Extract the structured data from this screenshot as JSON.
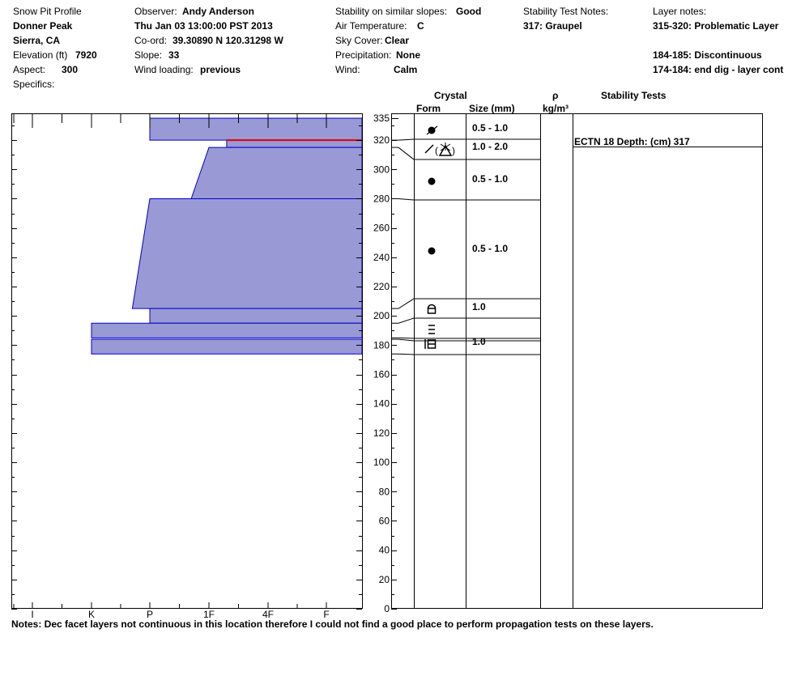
{
  "header": {
    "title": "Snow Pit Profile",
    "location": "Donner Peak",
    "region": "Sierra, CA",
    "elevation_label": "Elevation (ft)",
    "elevation_value": "7920",
    "aspect_label": "Aspect:",
    "aspect_value": "300",
    "specifics_label": "Specifics:",
    "observer_label": "Observer:",
    "observer_value": "Andy Anderson",
    "datetime": "Thu Jan 03 13:00:00 PST 2013",
    "coord_label": "Co-ord:",
    "coord_value": "39.30890 N 120.31298 W",
    "slope_label": "Slope:",
    "slope_value": "33",
    "wind_loading_label": "Wind loading:",
    "wind_loading_value": "previous",
    "stability_label": "Stability on similar slopes:",
    "stability_value": "Good",
    "air_temp_label": "Air Temperature:",
    "air_temp_value": "C",
    "sky_label": "Sky Cover:",
    "sky_value": "Clear",
    "precip_label": "Precipitation:",
    "precip_value": "None",
    "wind_label": "Wind:",
    "wind_value": "Calm",
    "stability_notes_label": "Stability Test Notes:",
    "stability_notes": [
      "317: Graupel"
    ],
    "layer_notes_label": "Layer notes:",
    "layer_notes": [
      "315-320: Problematic Layer",
      "",
      "184-185: Discontinuous",
      "174-184: end dig - layer cont"
    ]
  },
  "columns": {
    "crystal": "Crystal",
    "form": "Form",
    "size": "Size (mm)",
    "rho": "ρ",
    "density_unit": "kg/m³",
    "stability_tests": "Stability Tests"
  },
  "notes": "Notes:  Dec facet layers not continuous in this location therefore I could not find a good place to perform propagation tests on these layers.",
  "colors": {
    "layer_fill": "#9999d6",
    "layer_edge": "#0000cc",
    "problem_layer": "#e00000"
  },
  "chart_data": {
    "type": "bar",
    "orientation": "horizontal",
    "y_axis": {
      "label": "",
      "range": [
        0,
        335
      ],
      "ticks": [
        0,
        20,
        40,
        60,
        80,
        100,
        120,
        140,
        160,
        180,
        200,
        220,
        240,
        260,
        280,
        300,
        320,
        335
      ]
    },
    "hardness_scale": [
      "I",
      "K",
      "P",
      "1F",
      "4F",
      "F"
    ],
    "hardness_tick_values": [
      1,
      2,
      3,
      4,
      5,
      6
    ],
    "layers": [
      {
        "top": 335,
        "bottom": 320,
        "hardness_top": 3.0,
        "hardness_bottom": 3.0,
        "form": "round",
        "size": "0.5 - 1.0"
      },
      {
        "top": 320,
        "bottom": 315,
        "hardness_top": 4.3,
        "hardness_bottom": 4.3,
        "form": "graupel",
        "size": "1.0 - 2.0",
        "problem": true
      },
      {
        "top": 315,
        "bottom": 280,
        "hardness_top": 4.0,
        "hardness_bottom": 3.7,
        "form": "round",
        "size": "0.5 - 1.0"
      },
      {
        "top": 280,
        "bottom": 205,
        "hardness_top": 3.0,
        "hardness_bottom": 2.7,
        "form": "round",
        "size": "0.5 - 1.0"
      },
      {
        "top": 205,
        "bottom": 195,
        "hardness_top": 3.0,
        "hardness_bottom": 3.0,
        "form": "facet-round",
        "size": "1.0"
      },
      {
        "top": 195,
        "bottom": 185,
        "hardness_top": 2.0,
        "hardness_bottom": 2.0,
        "form": "facet",
        "size": ""
      },
      {
        "top": 184,
        "bottom": 174,
        "hardness_top": 2.0,
        "hardness_bottom": 2.0,
        "form": "depth-hoar",
        "size": "1.0"
      }
    ],
    "stability_tests": [
      {
        "height": 317,
        "label": "ECTN 18   Depth: (cm) 317"
      }
    ]
  }
}
